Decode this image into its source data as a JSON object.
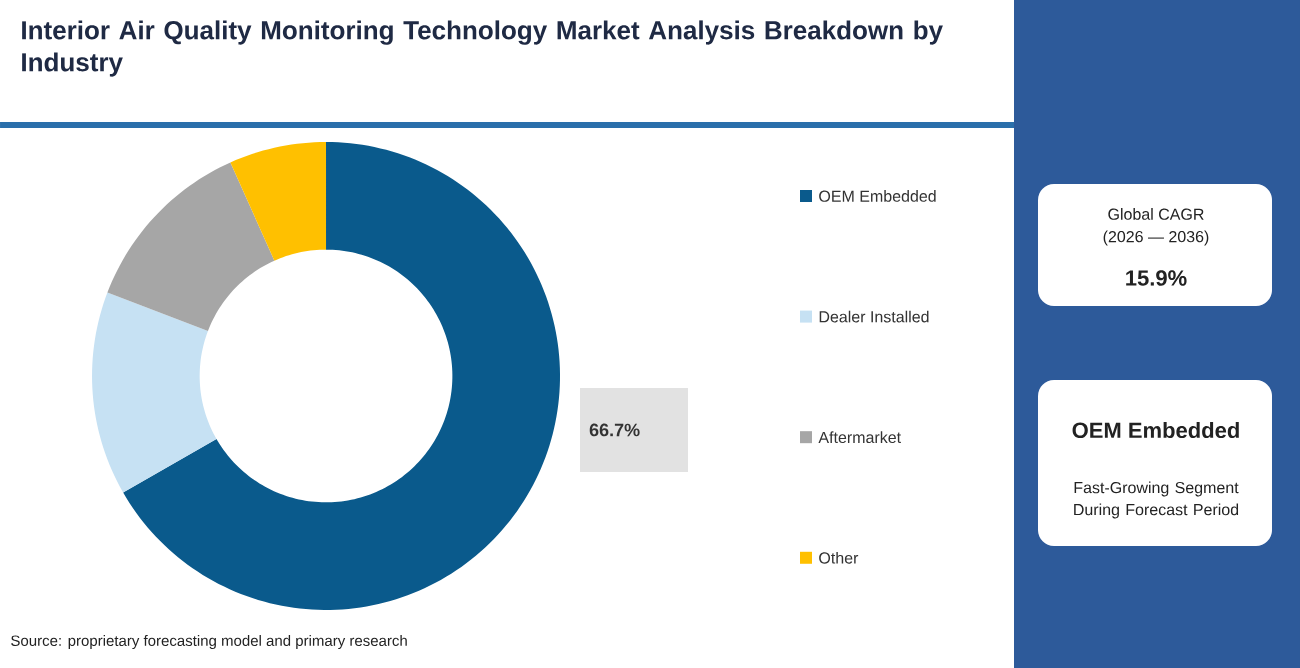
{
  "chart_data": {
    "type": "donut",
    "title": "Interior Air Quality Monitoring Technology Market Analysis Breakdown by Industry",
    "categories": [
      "OEM Embedded",
      "Dealer Installed",
      "Aftermarket",
      "Other"
    ],
    "values": [
      66.7,
      14.1,
      12.5,
      6.7
    ],
    "colors": [
      "#0a5a8c",
      "#c6e1f3",
      "#a6a6a6",
      "#ffc000"
    ],
    "value_labels": [
      "66.7%",
      null,
      null,
      null
    ],
    "legend": "right",
    "annotations": [
      "Source: proprietary forecasting model and primary research",
      "Global CAGR",
      "(2026 — 2036)",
      "15.9%",
      "OEM Embedded",
      "Fast-Growing Segment During Forecast Period"
    ]
  }
}
